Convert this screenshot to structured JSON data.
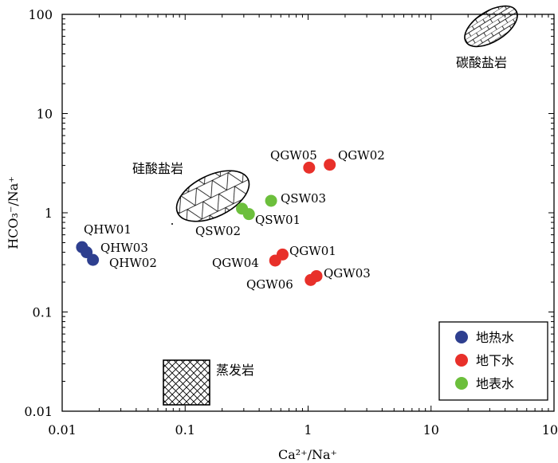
{
  "chart_data": {
    "type": "scatter",
    "x_scale": "log",
    "y_scale": "log",
    "xlabel": "Ca²⁺/Na⁺",
    "ylabel": "HCO₃⁻/Na⁺",
    "xlim": [
      0.01,
      100
    ],
    "ylim": [
      0.01,
      100
    ],
    "x_ticks": [
      {
        "value": 0.01,
        "label": "0.01"
      },
      {
        "value": 0.1,
        "label": "0.1"
      },
      {
        "value": 1,
        "label": "1"
      },
      {
        "value": 10,
        "label": "10"
      },
      {
        "value": 100,
        "label": "100"
      }
    ],
    "y_ticks": [
      {
        "value": 0.01,
        "label": "0.01"
      },
      {
        "value": 0.1,
        "label": "0.1"
      },
      {
        "value": 1,
        "label": "1"
      },
      {
        "value": 10,
        "label": "10"
      },
      {
        "value": 100,
        "label": "100"
      }
    ],
    "legend": {
      "position": "bottom-right",
      "items": [
        {
          "name": "地热水",
          "color": "#2e3f8f"
        },
        {
          "name": "地下水",
          "color": "#e8302a"
        },
        {
          "name": "地表水",
          "color": "#6cbf3c"
        }
      ]
    },
    "series": [
      {
        "name": "地热水",
        "color": "#2e3f8f",
        "points": [
          {
            "label": "QHW01",
            "x": 0.0145,
            "y": 0.45
          },
          {
            "label": "QHW03",
            "x": 0.0158,
            "y": 0.4
          },
          {
            "label": "QHW02",
            "x": 0.0178,
            "y": 0.335
          }
        ]
      },
      {
        "name": "地下水",
        "color": "#e8302a",
        "points": [
          {
            "label": "QGW05",
            "x": 1.02,
            "y": 2.85
          },
          {
            "label": "QGW02",
            "x": 1.5,
            "y": 3.05
          },
          {
            "label": "QGW01",
            "x": 0.62,
            "y": 0.38
          },
          {
            "label": "QGW04",
            "x": 0.54,
            "y": 0.33
          },
          {
            "label": "QGW03",
            "x": 1.17,
            "y": 0.23
          },
          {
            "label": "QGW06",
            "x": 1.05,
            "y": 0.21
          }
        ]
      },
      {
        "name": "地表水",
        "color": "#6cbf3c",
        "points": [
          {
            "label": "QSW03",
            "x": 0.5,
            "y": 1.32
          },
          {
            "label": "QSW02",
            "x": 0.29,
            "y": 1.1
          },
          {
            "label": "QSW01",
            "x": 0.33,
            "y": 0.97
          }
        ]
      }
    ],
    "regions": [
      {
        "name": "碳酸盐岩",
        "shape": "ellipse",
        "pattern": "brick",
        "x": 50,
        "y": 60
      },
      {
        "name": "硅酸盐岩",
        "shape": "ellipse",
        "pattern": "triangular",
        "x": 0.2,
        "y": 1.6
      },
      {
        "name": "蒸发岩",
        "shape": "rectangle",
        "pattern": "crosshatch",
        "x_range": [
          0.07,
          0.155
        ],
        "y_range": [
          0.012,
          0.035
        ]
      }
    ]
  }
}
